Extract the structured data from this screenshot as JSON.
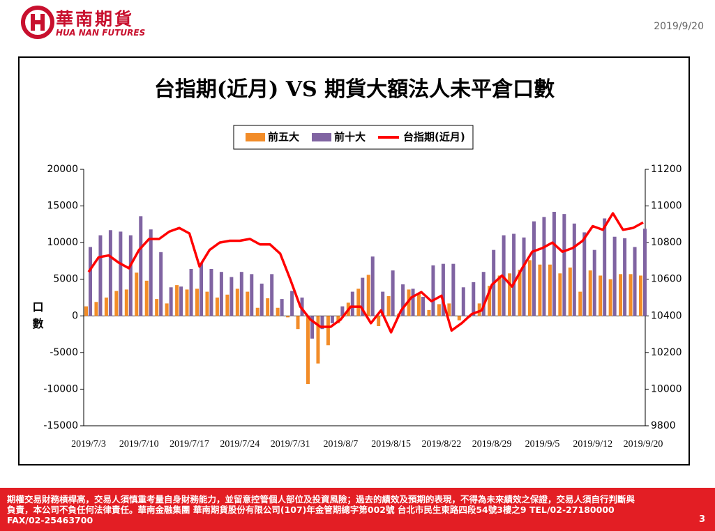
{
  "header": {
    "logo_cn": "華南期貨",
    "logo_en": "HUA NAN FUTURES",
    "date": "2019/9/20"
  },
  "chart_data": {
    "type": "bar",
    "title": "台指期(近月) VS 期貨大額法人未平倉口數",
    "y_label": "口數",
    "categories": [
      "2019/7/3",
      null,
      null,
      null,
      null,
      "2019/7/10",
      null,
      null,
      null,
      null,
      "2019/7/17",
      null,
      null,
      null,
      null,
      "2019/7/24",
      null,
      null,
      null,
      null,
      "2019/7/31",
      null,
      null,
      null,
      null,
      "2019/8/7",
      null,
      null,
      null,
      null,
      "2019/8/15",
      null,
      null,
      null,
      null,
      "2019/8/22",
      null,
      null,
      null,
      null,
      "2019/8/29",
      null,
      null,
      null,
      null,
      "2019/9/5",
      null,
      null,
      null,
      null,
      "2019/9/12",
      null,
      null,
      null,
      null,
      "2019/9/20"
    ],
    "series": [
      {
        "name": "前五大",
        "color": "#f28c28",
        "values": [
          1300,
          1900,
          2500,
          3400,
          3600,
          5900,
          4800,
          2300,
          1700,
          4200,
          3600,
          3700,
          3300,
          2500,
          2900,
          3700,
          3300,
          1100,
          2400,
          1100,
          -200,
          -1800,
          -9300,
          -6500,
          -4000,
          -1000,
          1800,
          3700,
          5600,
          -1400,
          2700,
          300,
          3600,
          3100,
          800,
          1600,
          1700,
          -600,
          -200,
          1700,
          4100,
          5500,
          5800,
          6300,
          7600,
          7000,
          7000,
          5800,
          6600,
          3300,
          6200,
          5500,
          5000,
          5700,
          5700,
          5500
        ]
      },
      {
        "name": "前十大",
        "color": "#8064a2",
        "values": [
          9400,
          11000,
          11700,
          11500,
          11000,
          13600,
          11800,
          8700,
          3900,
          4000,
          6400,
          7200,
          6400,
          6000,
          5300,
          6000,
          5700,
          4400,
          5700,
          2300,
          3400,
          2500,
          -3100,
          -1800,
          -1000,
          1300,
          3300,
          5200,
          8100,
          3300,
          6200,
          4300,
          3700,
          2600,
          6900,
          7100,
          7100,
          3900,
          4600,
          6000,
          9000,
          11000,
          11200,
          10700,
          12900,
          13500,
          14200,
          13900,
          12600,
          11400,
          9000,
          13300,
          10800,
          10600,
          9400,
          11900
        ]
      },
      {
        "name": "台指期(近月)",
        "color": "#ff0000",
        "type": "line",
        "axis": "y2",
        "values": [
          10640,
          10720,
          10730,
          10690,
          10660,
          10760,
          10820,
          10820,
          10860,
          10880,
          10850,
          10670,
          10760,
          10800,
          10810,
          10810,
          10820,
          10790,
          10790,
          10740,
          10600,
          10450,
          10380,
          10340,
          10340,
          10380,
          10450,
          10450,
          10360,
          10430,
          10310,
          10430,
          10500,
          10530,
          10480,
          10510,
          10320,
          10360,
          10410,
          10430,
          10570,
          10620,
          10560,
          10660,
          10750,
          10770,
          10800,
          10750,
          10770,
          10810,
          10890,
          10870,
          10960,
          10870,
          10880,
          10910
        ]
      }
    ],
    "ylim": [
      -15000,
      20000
    ],
    "yticks": [
      -15000,
      -10000,
      -5000,
      0,
      5000,
      10000,
      15000,
      20000
    ],
    "y2lim": [
      9800,
      11200
    ],
    "y2ticks": [
      9800,
      10000,
      10200,
      10400,
      10600,
      10800,
      11000,
      11200
    ]
  },
  "footer": {
    "disclaimer": "期權交易財務槓桿高，交易人須慎重考量自身財務能力，並留意控管個人部位及投資風險；過去的績效及預期的表現，不得為未來績效之保證，交易人須自行判斷與負責，本公司不負任何法律責任。華南金融集團 華南期貨股份有限公司(107)年金管期總字第002號 台北市民生東路四段54號3樓之9 TEL/02-27180000 FAX/02-25463700",
    "page": "3"
  }
}
